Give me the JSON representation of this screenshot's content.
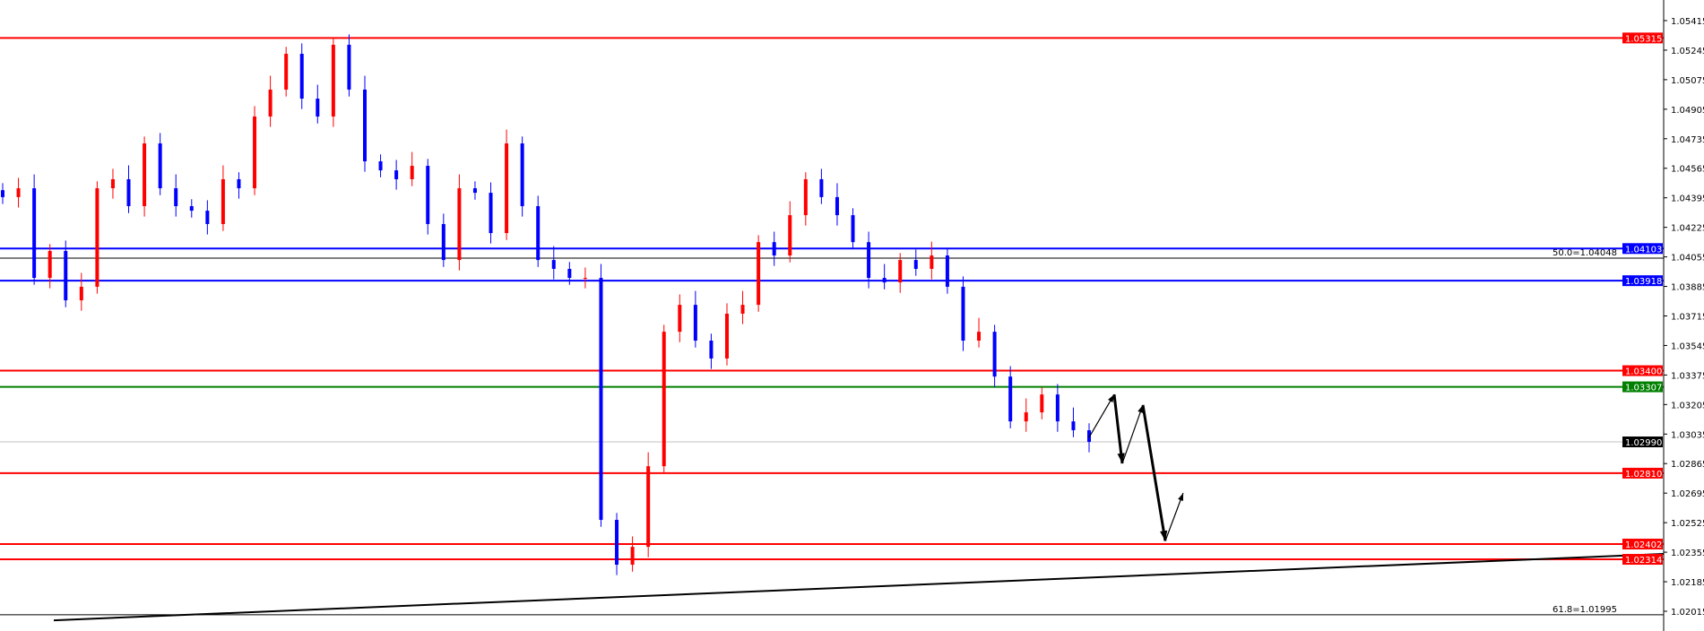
{
  "chart_data": {
    "type": "candlestick",
    "title": "",
    "ylim": [
      1.0192,
      1.0553
    ],
    "grid": false,
    "colors": {
      "up": "#ff0000",
      "down": "#0000ff",
      "axis": "#000000"
    },
    "y_ticks": [
      "1.05415",
      "1.05245",
      "1.05075",
      "1.04905",
      "1.04735",
      "1.04565",
      "1.04395",
      "1.04225",
      "1.04055",
      "1.03885",
      "1.03715",
      "1.03545",
      "1.03375",
      "1.03205",
      "1.03035",
      "1.02865",
      "1.02695",
      "1.02525",
      "1.02355",
      "1.02185",
      "1.02015"
    ],
    "closes": [
      1.04399,
      1.0445,
      1.03934,
      1.04089,
      1.03805,
      1.03883,
      1.0445,
      1.04502,
      1.04347,
      1.04708,
      1.0445,
      1.04347,
      1.04321,
      1.04244,
      1.04502,
      1.0445,
      1.04863,
      1.05018,
      1.05224,
      1.04966,
      1.04863,
      1.05276,
      1.05018,
      1.04605,
      1.04553,
      1.04502,
      1.04579,
      1.04244,
      1.04037,
      1.0445,
      1.04424,
      1.04192,
      1.04708,
      1.04347,
      1.04037,
      1.03986,
      1.03934,
      1.03934,
      1.02541,
      1.02283,
      1.02386,
      1.0285,
      1.03624,
      1.03779,
      1.03573,
      1.0347,
      1.03728,
      1.03779,
      1.0414,
      1.04063,
      1.04295,
      1.04502,
      1.04399,
      1.04295,
      1.0414,
      1.03934,
      1.03908,
      1.04037,
      1.03986,
      1.04063,
      1.03883,
      1.03573,
      1.03624,
      1.03366,
      1.03108,
      1.0316,
      1.03263,
      1.03108,
      1.03057,
      1.0299
    ],
    "levels": [
      {
        "price": 1.05315,
        "label": "1.05315",
        "color": "#ff0000"
      },
      {
        "price": 1.04103,
        "label": "1.04103",
        "color": "#0000ff"
      },
      {
        "price": 1.03918,
        "label": "1.03918",
        "color": "#0000ff"
      },
      {
        "price": 1.034,
        "label": "1.03400",
        "color": "#ff0000"
      },
      {
        "price": 1.03307,
        "label": "1.03307",
        "color": "#008000"
      },
      {
        "price": 1.0281,
        "label": "1.02810",
        "color": "#ff0000"
      },
      {
        "price": 1.02402,
        "label": "1.02402",
        "color": "#ff0000"
      },
      {
        "price": 1.02314,
        "label": "1.02314",
        "color": "#ff0000"
      }
    ],
    "current_price": {
      "price": 1.0299,
      "label": "1.02990",
      "color": "#000000"
    },
    "fibonacci": [
      {
        "price": 1.04048,
        "label": "50.0=1.04048"
      },
      {
        "price": 1.01995,
        "label": "61.8=1.01995"
      }
    ],
    "trendline": {
      "start_price": 1.01963,
      "end_price": 1.02345
    },
    "projection_path": [
      1.03016,
      1.03263,
      1.02866,
      1.03202,
      1.0242,
      1.02696
    ]
  }
}
